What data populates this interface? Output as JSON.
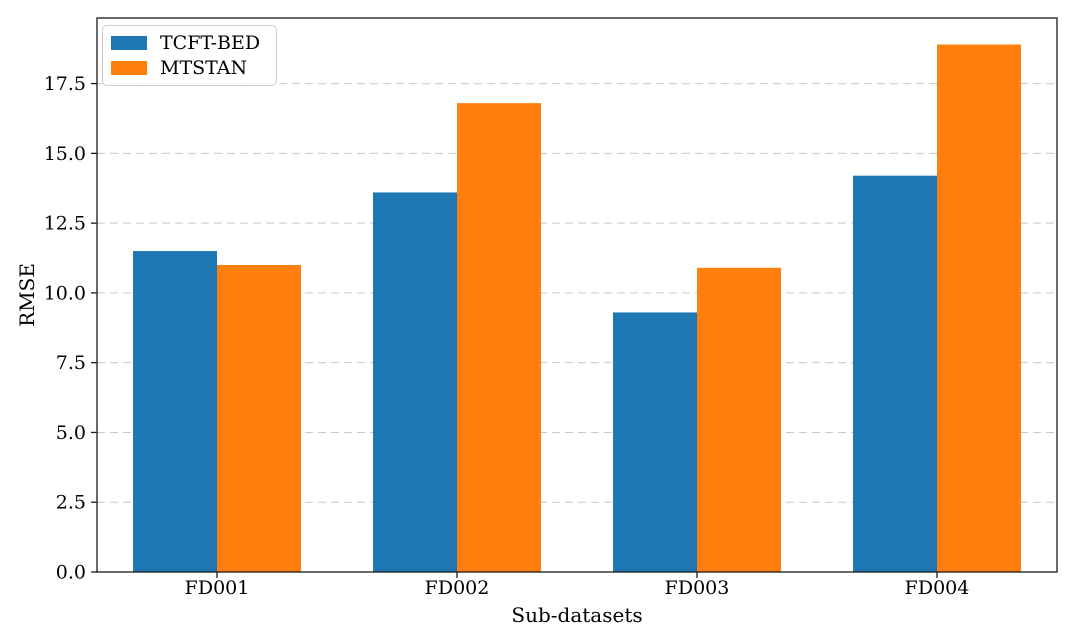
{
  "chart_data": {
    "type": "bar",
    "categories": [
      "FD001",
      "FD002",
      "FD003",
      "FD004"
    ],
    "series": [
      {
        "name": "TCFT-BED",
        "color": "#1f77b4",
        "values": [
          11.5,
          13.6,
          9.3,
          14.2
        ]
      },
      {
        "name": "MTSTAN",
        "color": "#ff7f0e",
        "values": [
          11.0,
          16.8,
          10.9,
          18.9
        ]
      }
    ],
    "xlabel": "Sub-datasets",
    "ylabel": "RMSE",
    "ylim": [
      0,
      19.85
    ],
    "yticks": [
      0.0,
      2.5,
      5.0,
      7.5,
      10.0,
      12.5,
      15.0,
      17.5
    ],
    "ytick_labels": [
      "0.0",
      "2.5",
      "5.0",
      "7.5",
      "10.0",
      "12.5",
      "15.0",
      "17.5"
    ],
    "grid": "y-dashed",
    "legend_position": "upper-left",
    "background": "#ffffff",
    "axis_color": "#1a1a1a",
    "gridline_color": "#c9c9c9",
    "bar_group_width": 0.7
  }
}
